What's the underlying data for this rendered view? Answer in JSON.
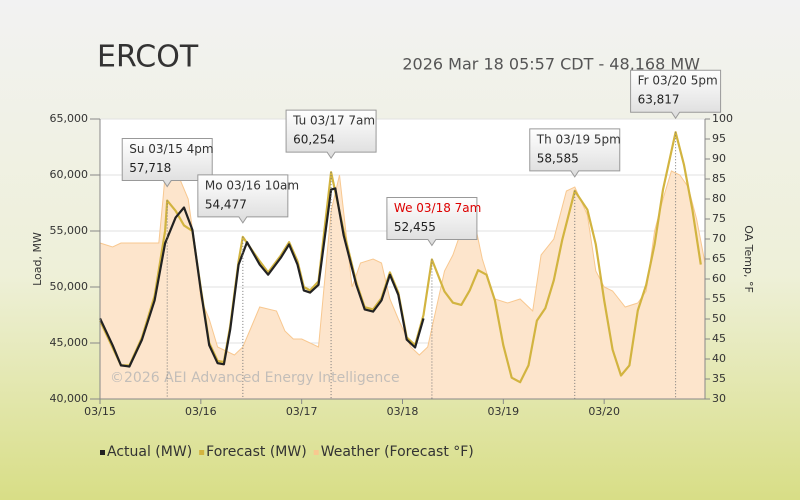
{
  "chart_data": {
    "type": "line",
    "title": "ERCOT",
    "subtitle": "2026 Mar 18 05:57 CDT - 48,168 MW",
    "watermark": "©2026 AEI Advanced Energy Intelligence",
    "ylabel": "Load, MW",
    "y2label": "OA Temp, °F",
    "xlim": [
      0,
      144
    ],
    "xticks": [
      {
        "value": 0,
        "label": "03/15"
      },
      {
        "value": 24,
        "label": "03/16"
      },
      {
        "value": 48,
        "label": "03/17"
      },
      {
        "value": 72,
        "label": "03/18"
      },
      {
        "value": 96,
        "label": "03/19"
      },
      {
        "value": 120,
        "label": "03/20"
      }
    ],
    "ylim": [
      40000,
      65000
    ],
    "yticks": [
      {
        "value": 40000,
        "label": "40,000"
      },
      {
        "value": 45000,
        "label": "45,000"
      },
      {
        "value": 50000,
        "label": "50,000"
      },
      {
        "value": 55000,
        "label": "55,000"
      },
      {
        "value": 60000,
        "label": "60,000"
      },
      {
        "value": 65000,
        "label": "65,000"
      }
    ],
    "y2lim": [
      30,
      100
    ],
    "y2ticks": [
      30,
      35,
      40,
      45,
      50,
      55,
      60,
      65,
      70,
      75,
      80,
      85,
      90,
      95,
      100
    ],
    "grid": true,
    "legend": "bottom",
    "series": [
      {
        "name": "Weather (Forecast °F)",
        "color": "#f8c890",
        "fill": "#fde5cc",
        "kind": "area",
        "axis": "y2",
        "x": [
          0,
          3,
          5,
          14,
          15,
          16,
          19,
          21,
          23,
          24,
          26,
          28,
          32,
          34,
          36,
          38,
          42,
          44,
          46,
          48,
          52,
          55,
          57,
          60,
          62,
          65,
          67,
          69,
          71,
          74,
          76,
          78,
          82,
          84,
          87,
          89,
          91,
          94,
          97,
          100,
          103,
          105,
          108,
          111,
          113,
          116,
          118,
          120,
          122,
          125,
          128,
          130,
          132,
          134,
          136,
          138,
          140,
          142,
          144
        ],
        "values": [
          69,
          68,
          69,
          69,
          80,
          92,
          85,
          80,
          65,
          55,
          50,
          43,
          41,
          43,
          48,
          53,
          52,
          47,
          45,
          45,
          43,
          77,
          86,
          58,
          64,
          65,
          64,
          55,
          50,
          43,
          41,
          43,
          62,
          66,
          75,
          75,
          65,
          55,
          54,
          55,
          52,
          66,
          70,
          82,
          83,
          76,
          62,
          58,
          57,
          53,
          54,
          57,
          72,
          80,
          87,
          86,
          83,
          75,
          64
        ]
      },
      {
        "name": "Forecast (MW)",
        "color": "#d2b440",
        "kind": "line",
        "x": [
          0,
          3,
          5,
          7,
          10,
          13,
          15.5,
          16,
          18,
          20,
          22,
          24,
          26,
          28,
          29.5,
          31,
          33,
          34,
          38,
          40,
          43,
          45,
          47,
          48.5,
          50,
          52,
          55,
          58,
          61,
          63,
          65,
          67,
          69,
          71,
          73,
          75,
          77,
          79,
          82,
          84,
          86,
          88,
          90,
          92,
          94,
          96,
          98,
          100,
          102,
          104,
          106,
          108,
          110,
          113,
          116,
          118,
          120,
          122,
          124,
          126,
          128,
          130,
          132,
          134,
          137,
          139,
          141,
          143
        ],
        "values": [
          47000,
          44600,
          43000,
          43000,
          45500,
          49200,
          55000,
          57718,
          56800,
          55500,
          55000,
          49900,
          45000,
          43400,
          43300,
          46500,
          52300,
          54477,
          52300,
          51300,
          52800,
          54000,
          52300,
          50000,
          49700,
          50500,
          60254,
          55000,
          50400,
          48200,
          48000,
          49000,
          51300,
          49500,
          45500,
          44800,
          47500,
          52455,
          49600,
          48600,
          48400,
          49700,
          51500,
          51100,
          48800,
          44800,
          41900,
          41500,
          43000,
          47000,
          48100,
          50600,
          54200,
          58585,
          56900,
          53800,
          48800,
          44400,
          42100,
          43000,
          47900,
          50200,
          53800,
          58700,
          63817,
          60900,
          56900,
          52000
        ]
      },
      {
        "name": "Actual (MW)",
        "color": "#222222",
        "kind": "line",
        "x": [
          0,
          3,
          5,
          7,
          10,
          13,
          15.5,
          18,
          20,
          22,
          24,
          26,
          28,
          29.5,
          31,
          33,
          35,
          38,
          40,
          43,
          45,
          47,
          48.5,
          50,
          52,
          55,
          56,
          58,
          61,
          63,
          65,
          67,
          69,
          71,
          73,
          75,
          77
        ],
        "values": [
          47200,
          44800,
          43000,
          42900,
          45300,
          48800,
          53900,
          56200,
          57100,
          55100,
          49700,
          44800,
          43200,
          43100,
          46200,
          52000,
          54000,
          52000,
          51100,
          52600,
          53800,
          52000,
          49700,
          49500,
          50200,
          58700,
          58800,
          54600,
          50200,
          48000,
          47800,
          48800,
          51100,
          49300,
          45300,
          44600,
          47200
        ]
      }
    ],
    "annotations": [
      {
        "label": "Su 03/15 4pm",
        "x": 16,
        "value": 57718,
        "value_label": "57,718",
        "color": "#333333"
      },
      {
        "label": "Mo 03/16 10am",
        "x": 34,
        "value": 54477,
        "value_label": "54,477",
        "color": "#333333"
      },
      {
        "label": "Tu 03/17 7am",
        "x": 55,
        "value": 60254,
        "value_label": "60,254",
        "color": "#333333"
      },
      {
        "label": "We 03/18 7am",
        "x": 79,
        "value": 52455,
        "value_label": "52,455",
        "color": "#dd0000"
      },
      {
        "label": "Th 03/19 5pm",
        "x": 113,
        "value": 58585,
        "value_label": "58,585",
        "color": "#333333"
      },
      {
        "label": "Fr 03/20 5pm",
        "x": 137,
        "value": 63817,
        "value_label": "63,817",
        "color": "#333333"
      }
    ]
  }
}
